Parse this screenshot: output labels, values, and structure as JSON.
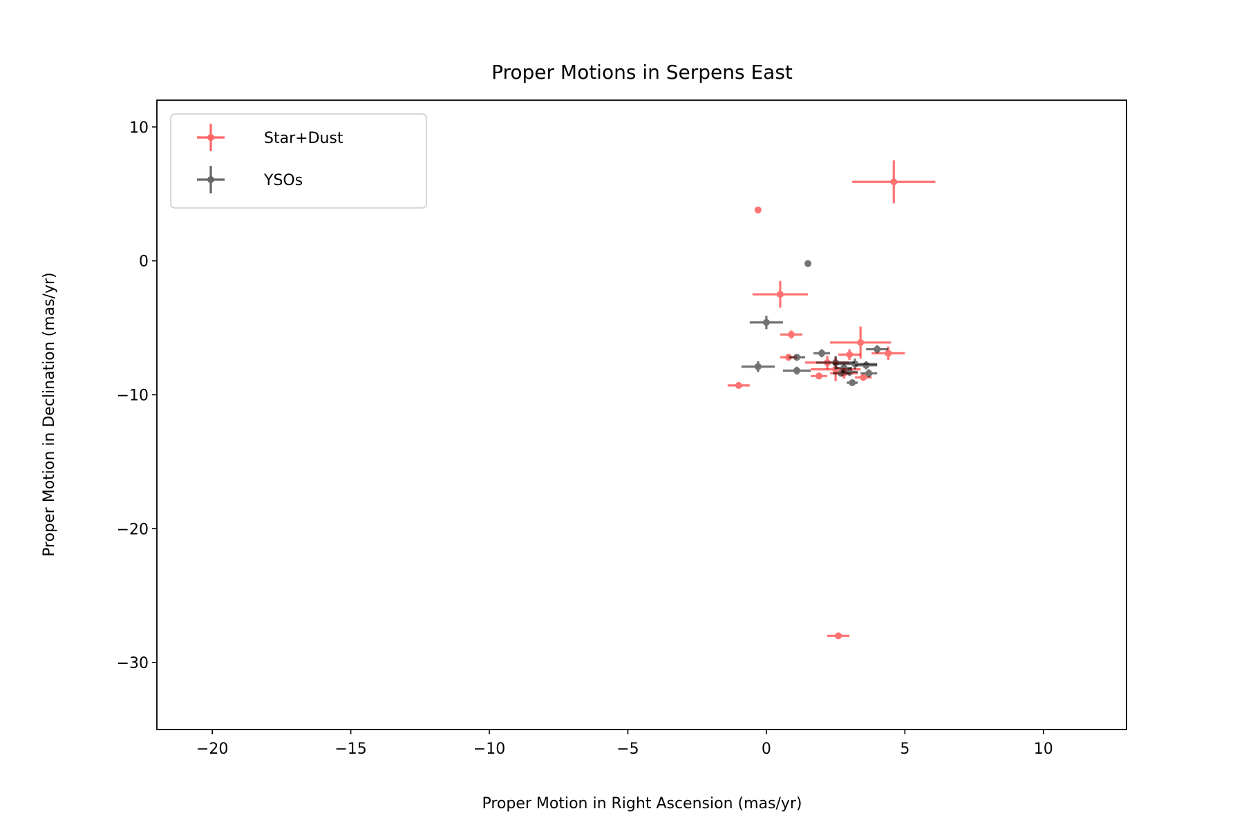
{
  "chart_data": {
    "type": "scatter",
    "title": "Proper Motions in Serpens East",
    "xlabel": "Proper Motion in Right Ascension (mas/yr)",
    "ylabel": "Proper Motion in Declination (mas/yr)",
    "xlim": [
      -22,
      13
    ],
    "ylim": [
      -35,
      12
    ],
    "xticks": [
      -20,
      -15,
      -10,
      -5,
      0,
      5,
      10
    ],
    "yticks": [
      10,
      0,
      -10,
      -20,
      -30
    ],
    "xtick_labels": [
      "−20",
      "−15",
      "−10",
      "−5",
      "0",
      "5",
      "10"
    ],
    "ytick_labels": [
      "10",
      "0",
      "−10",
      "−20",
      "−30"
    ],
    "grid": false,
    "legend": {
      "position": "upper-left"
    },
    "series": [
      {
        "name": "Star+Dust",
        "color": "#ff0000",
        "points": [
          {
            "x": 4.6,
            "y": 5.9,
            "xerr": 1.5,
            "yerr": 1.6
          },
          {
            "x": -0.3,
            "y": 3.8,
            "xerr": 0,
            "yerr": 0
          },
          {
            "x": 0.5,
            "y": -2.5,
            "xerr": 1.0,
            "yerr": 1.0
          },
          {
            "x": 0.9,
            "y": -5.5,
            "xerr": 0.4,
            "yerr": 0.3
          },
          {
            "x": 3.4,
            "y": -6.1,
            "xerr": 1.1,
            "yerr": 1.2
          },
          {
            "x": 4.4,
            "y": -6.9,
            "xerr": 0.6,
            "yerr": 0.5
          },
          {
            "x": 0.8,
            "y": -7.2,
            "xerr": 0.3,
            "yerr": 0.2
          },
          {
            "x": 2.2,
            "y": -7.6,
            "xerr": 0.8,
            "yerr": 0.5
          },
          {
            "x": 2.5,
            "y": -8.1,
            "xerr": 0.9,
            "yerr": 0.9
          },
          {
            "x": 3.0,
            "y": -7.0,
            "xerr": 0.4,
            "yerr": 0.4
          },
          {
            "x": 1.9,
            "y": -8.6,
            "xerr": 0.3,
            "yerr": 0.2
          },
          {
            "x": 3.5,
            "y": -8.7,
            "xerr": 0.3,
            "yerr": 0.2
          },
          {
            "x": 2.8,
            "y": -8.4,
            "xerr": 0.5,
            "yerr": 0.4
          },
          {
            "x": -1.0,
            "y": -9.3,
            "xerr": 0.4,
            "yerr": 0.2
          },
          {
            "x": 2.6,
            "y": -28.0,
            "xerr": 0.4,
            "yerr": 0.2
          }
        ]
      },
      {
        "name": "YSOs",
        "color": "#000000",
        "points": [
          {
            "x": 1.5,
            "y": -0.2,
            "xerr": 0,
            "yerr": 0
          },
          {
            "x": 0.0,
            "y": -4.6,
            "xerr": 0.6,
            "yerr": 0.5
          },
          {
            "x": 4.0,
            "y": -6.6,
            "xerr": 0.4,
            "yerr": 0.3
          },
          {
            "x": 2.0,
            "y": -6.9,
            "xerr": 0.3,
            "yerr": 0.3
          },
          {
            "x": 1.1,
            "y": -7.2,
            "xerr": 0.3,
            "yerr": 0.2
          },
          {
            "x": 2.5,
            "y": -7.6,
            "xerr": 0.7,
            "yerr": 0.5
          },
          {
            "x": 3.2,
            "y": -7.7,
            "xerr": 0.8,
            "yerr": 0.4
          },
          {
            "x": -0.3,
            "y": -7.9,
            "xerr": 0.6,
            "yerr": 0.4
          },
          {
            "x": 3.6,
            "y": -7.8,
            "xerr": 0.4,
            "yerr": 0.3
          },
          {
            "x": 2.8,
            "y": -8.0,
            "xerr": 0.3,
            "yerr": 0.3
          },
          {
            "x": 1.1,
            "y": -8.2,
            "xerr": 0.5,
            "yerr": 0.3
          },
          {
            "x": 3.0,
            "y": -8.3,
            "xerr": 0.3,
            "yerr": 0.3
          },
          {
            "x": 3.7,
            "y": -8.4,
            "xerr": 0.3,
            "yerr": 0.3
          },
          {
            "x": 2.7,
            "y": -8.4,
            "xerr": 0.3,
            "yerr": 0.2
          },
          {
            "x": 3.1,
            "y": -9.1,
            "xerr": 0.2,
            "yerr": 0.2
          }
        ]
      }
    ]
  }
}
